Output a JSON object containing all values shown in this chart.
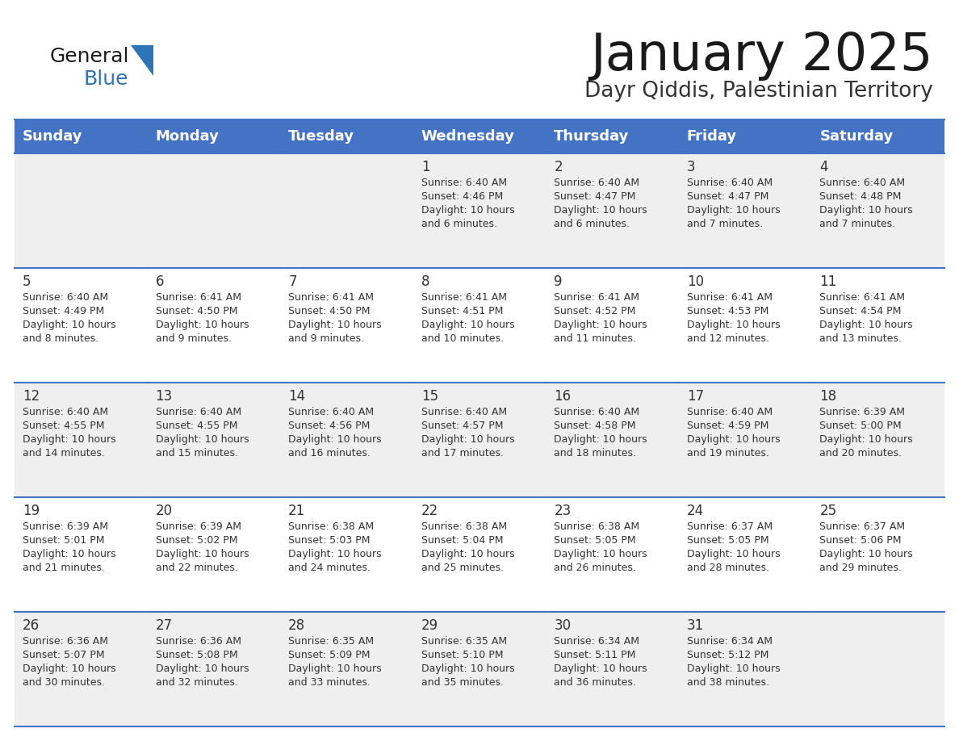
{
  "title": "January 2025",
  "subtitle": "Dayr Qiddis, Palestinian Territory",
  "header_color": "#4472C4",
  "header_text_color": "#FFFFFF",
  "days_of_week": [
    "Sunday",
    "Monday",
    "Tuesday",
    "Wednesday",
    "Thursday",
    "Friday",
    "Saturday"
  ],
  "title_color": "#1a1a1a",
  "subtitle_color": "#333333",
  "cell_bg_even": "#EFEFEF",
  "cell_bg_odd": "#FFFFFF",
  "separator_color": "#4472C4",
  "text_color": "#333333",
  "logo_general_color": "#1a1a1a",
  "logo_blue_color": "#2E75B6",
  "logo_triangle_color": "#2E75B6",
  "calendar": [
    [
      {
        "day": null,
        "sunrise": null,
        "sunset": null,
        "daylight": null
      },
      {
        "day": null,
        "sunrise": null,
        "sunset": null,
        "daylight": null
      },
      {
        "day": null,
        "sunrise": null,
        "sunset": null,
        "daylight": null
      },
      {
        "day": 1,
        "sunrise": "6:40 AM",
        "sunset": "4:46 PM",
        "daylight": "10 hours and 6 minutes."
      },
      {
        "day": 2,
        "sunrise": "6:40 AM",
        "sunset": "4:47 PM",
        "daylight": "10 hours and 6 minutes."
      },
      {
        "day": 3,
        "sunrise": "6:40 AM",
        "sunset": "4:47 PM",
        "daylight": "10 hours and 7 minutes."
      },
      {
        "day": 4,
        "sunrise": "6:40 AM",
        "sunset": "4:48 PM",
        "daylight": "10 hours and 7 minutes."
      }
    ],
    [
      {
        "day": 5,
        "sunrise": "6:40 AM",
        "sunset": "4:49 PM",
        "daylight": "10 hours and 8 minutes."
      },
      {
        "day": 6,
        "sunrise": "6:41 AM",
        "sunset": "4:50 PM",
        "daylight": "10 hours and 9 minutes."
      },
      {
        "day": 7,
        "sunrise": "6:41 AM",
        "sunset": "4:50 PM",
        "daylight": "10 hours and 9 minutes."
      },
      {
        "day": 8,
        "sunrise": "6:41 AM",
        "sunset": "4:51 PM",
        "daylight": "10 hours and 10 minutes."
      },
      {
        "day": 9,
        "sunrise": "6:41 AM",
        "sunset": "4:52 PM",
        "daylight": "10 hours and 11 minutes."
      },
      {
        "day": 10,
        "sunrise": "6:41 AM",
        "sunset": "4:53 PM",
        "daylight": "10 hours and 12 minutes."
      },
      {
        "day": 11,
        "sunrise": "6:41 AM",
        "sunset": "4:54 PM",
        "daylight": "10 hours and 13 minutes."
      }
    ],
    [
      {
        "day": 12,
        "sunrise": "6:40 AM",
        "sunset": "4:55 PM",
        "daylight": "10 hours and 14 minutes."
      },
      {
        "day": 13,
        "sunrise": "6:40 AM",
        "sunset": "4:55 PM",
        "daylight": "10 hours and 15 minutes."
      },
      {
        "day": 14,
        "sunrise": "6:40 AM",
        "sunset": "4:56 PM",
        "daylight": "10 hours and 16 minutes."
      },
      {
        "day": 15,
        "sunrise": "6:40 AM",
        "sunset": "4:57 PM",
        "daylight": "10 hours and 17 minutes."
      },
      {
        "day": 16,
        "sunrise": "6:40 AM",
        "sunset": "4:58 PM",
        "daylight": "10 hours and 18 minutes."
      },
      {
        "day": 17,
        "sunrise": "6:40 AM",
        "sunset": "4:59 PM",
        "daylight": "10 hours and 19 minutes."
      },
      {
        "day": 18,
        "sunrise": "6:39 AM",
        "sunset": "5:00 PM",
        "daylight": "10 hours and 20 minutes."
      }
    ],
    [
      {
        "day": 19,
        "sunrise": "6:39 AM",
        "sunset": "5:01 PM",
        "daylight": "10 hours and 21 minutes."
      },
      {
        "day": 20,
        "sunrise": "6:39 AM",
        "sunset": "5:02 PM",
        "daylight": "10 hours and 22 minutes."
      },
      {
        "day": 21,
        "sunrise": "6:38 AM",
        "sunset": "5:03 PM",
        "daylight": "10 hours and 24 minutes."
      },
      {
        "day": 22,
        "sunrise": "6:38 AM",
        "sunset": "5:04 PM",
        "daylight": "10 hours and 25 minutes."
      },
      {
        "day": 23,
        "sunrise": "6:38 AM",
        "sunset": "5:05 PM",
        "daylight": "10 hours and 26 minutes."
      },
      {
        "day": 24,
        "sunrise": "6:37 AM",
        "sunset": "5:05 PM",
        "daylight": "10 hours and 28 minutes."
      },
      {
        "day": 25,
        "sunrise": "6:37 AM",
        "sunset": "5:06 PM",
        "daylight": "10 hours and 29 minutes."
      }
    ],
    [
      {
        "day": 26,
        "sunrise": "6:36 AM",
        "sunset": "5:07 PM",
        "daylight": "10 hours and 30 minutes."
      },
      {
        "day": 27,
        "sunrise": "6:36 AM",
        "sunset": "5:08 PM",
        "daylight": "10 hours and 32 minutes."
      },
      {
        "day": 28,
        "sunrise": "6:35 AM",
        "sunset": "5:09 PM",
        "daylight": "10 hours and 33 minutes."
      },
      {
        "day": 29,
        "sunrise": "6:35 AM",
        "sunset": "5:10 PM",
        "daylight": "10 hours and 35 minutes."
      },
      {
        "day": 30,
        "sunrise": "6:34 AM",
        "sunset": "5:11 PM",
        "daylight": "10 hours and 36 minutes."
      },
      {
        "day": 31,
        "sunrise": "6:34 AM",
        "sunset": "5:12 PM",
        "daylight": "10 hours and 38 minutes."
      },
      {
        "day": null,
        "sunrise": null,
        "sunset": null,
        "daylight": null
      }
    ]
  ]
}
